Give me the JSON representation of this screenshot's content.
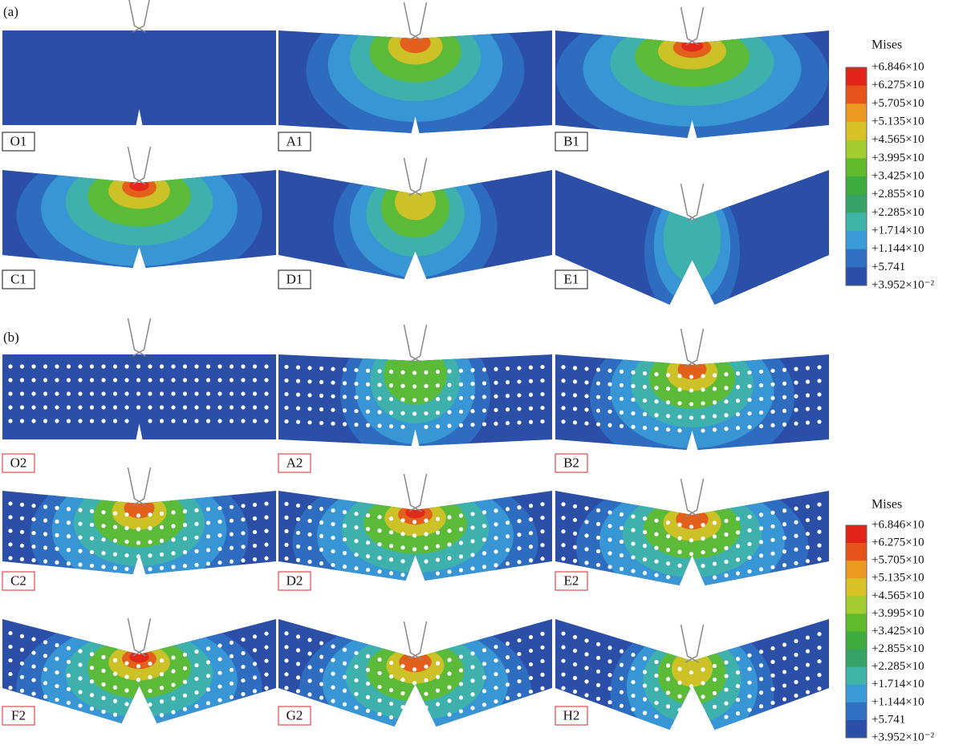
{
  "part_a": {
    "label": "(a)",
    "panels": [
      "O1",
      "A1",
      "B1",
      "C1",
      "D1",
      "E1"
    ],
    "legend": {
      "title": "Mises",
      "labels": [
        "+6.846×10",
        "+6.275×10",
        "+5.705×10",
        "+5.135×10",
        "+4.565×10",
        "+3.995×10",
        "+3.425×10",
        "+2.855×10",
        "+2.285×10",
        "+1.714×10",
        "+1.144×10",
        "+5.741",
        "+3.952×10⁻²"
      ],
      "colors": [
        "#e2231a",
        "#e6541c",
        "#eb9a21",
        "#d8c226",
        "#a3cd2f",
        "#5fbb2c",
        "#3dab3e",
        "#36a266",
        "#3fb4a8",
        "#3b9bd6",
        "#2f70c2",
        "#2b4ea6"
      ]
    }
  },
  "part_b": {
    "label": "(b)",
    "panels": [
      "O2",
      "A2",
      "B2",
      "C2",
      "D2",
      "E2",
      "F2",
      "G2",
      "H2"
    ],
    "legend": {
      "title": "Mises",
      "labels": [
        "+6.846×10",
        "+6.275×10",
        "+5.705×10",
        "+5.135×10",
        "+4.565×10",
        "+3.995×10",
        "+3.425×10",
        "+2.855×10",
        "+2.285×10",
        "+1.714×10",
        "+1.144×10",
        "+5.741",
        "+3.952×10⁻²"
      ],
      "colors": [
        "#e2231a",
        "#e6541c",
        "#eb9a21",
        "#d8c226",
        "#a3cd2f",
        "#5fbb2c",
        "#3dab3e",
        "#36a266",
        "#3fb4a8",
        "#3b9bd6",
        "#2f70c2",
        "#2b4ea6"
      ]
    }
  }
}
